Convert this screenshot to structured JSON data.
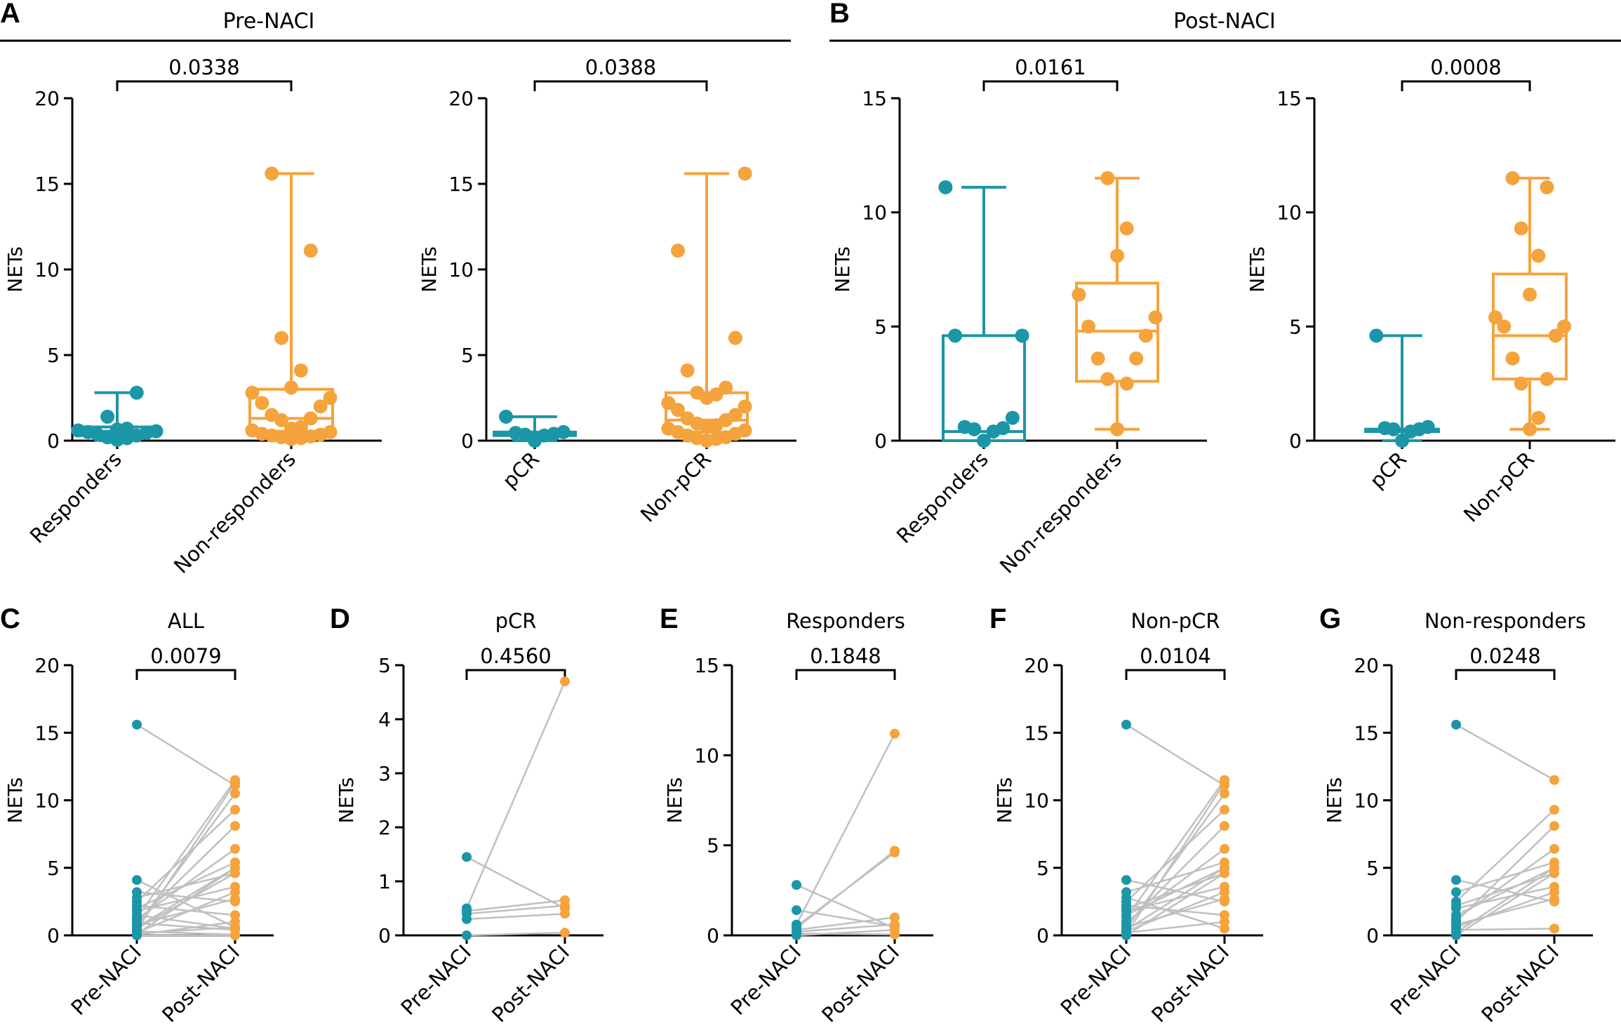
{
  "colors": {
    "teal": "#1b96a7",
    "orange": "#f5a33d",
    "line": "#c0c0c0"
  },
  "groups": [
    {
      "label": "A",
      "title": "Pre-NACI"
    },
    {
      "label": "B",
      "title": "Post-NACI"
    }
  ],
  "chart_data": [
    {
      "panel": "A",
      "type": "box",
      "ylabel": "NETs",
      "ylim": [
        0,
        20
      ],
      "yticks": [
        0,
        5,
        10,
        15,
        20
      ],
      "categories": [
        "Responders",
        "Non-responders"
      ],
      "p_value": "0.0338",
      "series": [
        {
          "values": [
            0.05,
            0.15,
            0.2,
            0.3,
            0.35,
            0.45,
            0.5,
            0.55,
            0.6,
            0.65,
            0.7,
            1.4,
            2.8
          ],
          "box": {
            "min": 0.05,
            "q1": 0.3,
            "median": 0.55,
            "q3": 0.8,
            "max": 2.8
          }
        },
        {
          "values": [
            0.1,
            0.15,
            0.2,
            0.25,
            0.3,
            0.35,
            0.4,
            0.5,
            0.6,
            0.7,
            0.8,
            1.2,
            1.3,
            1.5,
            2.0,
            2.2,
            2.5,
            2.8,
            3.1,
            4.1,
            6.0,
            11.1,
            15.6
          ],
          "box": {
            "min": 0.1,
            "q1": 0.55,
            "median": 1.3,
            "q3": 3.0,
            "max": 15.6
          }
        }
      ]
    },
    {
      "panel": "A",
      "type": "box",
      "ylabel": "NETs",
      "ylim": [
        0,
        20
      ],
      "yticks": [
        0,
        5,
        10,
        15,
        20
      ],
      "categories": [
        "pCR",
        "Non-pCR"
      ],
      "p_value": "0.0388",
      "series": [
        {
          "values": [
            0.0,
            0.3,
            0.35,
            0.4,
            0.45,
            0.5,
            1.4
          ],
          "box": {
            "min": 0.0,
            "q1": 0.3,
            "median": 0.4,
            "q3": 0.5,
            "max": 1.4
          }
        },
        {
          "values": [
            0.0,
            0.1,
            0.15,
            0.2,
            0.3,
            0.4,
            0.5,
            0.6,
            0.7,
            0.8,
            0.9,
            1.0,
            1.2,
            1.3,
            1.5,
            1.8,
            2.0,
            2.2,
            2.5,
            2.7,
            2.8,
            3.1,
            4.1,
            6.0,
            11.1,
            15.6
          ],
          "box": {
            "min": 0.0,
            "q1": 0.5,
            "median": 1.2,
            "q3": 2.8,
            "max": 15.6
          }
        }
      ]
    },
    {
      "panel": "B",
      "type": "box",
      "ylabel": "NETs",
      "ylim": [
        0,
        15
      ],
      "yticks": [
        0,
        5,
        10,
        15
      ],
      "categories": [
        "Responders",
        "Non-responders"
      ],
      "p_value": "0.0161",
      "series": [
        {
          "values": [
            0.0,
            0.4,
            0.5,
            0.55,
            0.6,
            1.0,
            4.6,
            4.6,
            11.1
          ],
          "box": {
            "min": 0.0,
            "q1": 0.0,
            "median": 0.4,
            "q3": 4.6,
            "max": 11.1
          }
        },
        {
          "values": [
            0.5,
            2.5,
            2.7,
            3.6,
            3.6,
            4.6,
            5.0,
            5.4,
            6.4,
            8.1,
            9.3,
            11.5
          ],
          "box": {
            "min": 0.5,
            "q1": 2.6,
            "median": 4.8,
            "q3": 6.9,
            "max": 11.5
          }
        }
      ]
    },
    {
      "panel": "B",
      "type": "box",
      "ylabel": "NETs",
      "ylim": [
        0,
        15
      ],
      "yticks": [
        0,
        5,
        10,
        15
      ],
      "categories": [
        "pCR",
        "Non-pCR"
      ],
      "p_value": "0.0008",
      "series": [
        {
          "values": [
            0.0,
            0.4,
            0.5,
            0.5,
            0.55,
            0.6,
            4.6
          ],
          "box": {
            "min": 0.0,
            "q1": 0.4,
            "median": 0.5,
            "q3": 0.5,
            "max": 4.6
          }
        },
        {
          "values": [
            0.5,
            1.0,
            2.5,
            2.7,
            3.6,
            4.6,
            5.0,
            5.0,
            5.4,
            6.4,
            8.1,
            9.3,
            11.1,
            11.5
          ],
          "box": {
            "min": 0.5,
            "q1": 2.7,
            "median": 4.6,
            "q3": 7.3,
            "max": 11.5
          }
        }
      ]
    },
    {
      "panel": "C",
      "type": "paired",
      "title": "ALL",
      "ylabel": "NETs",
      "ylim": [
        0,
        20
      ],
      "yticks": [
        0,
        5,
        10,
        15,
        20
      ],
      "categories": [
        "Pre-NACI",
        "Post-NACI"
      ],
      "p_value": "0.0079",
      "pairs": [
        [
          15.6,
          11.1
        ],
        [
          4.1,
          0.6
        ],
        [
          3.2,
          2.5
        ],
        [
          2.8,
          4.6
        ],
        [
          2.5,
          9.3
        ],
        [
          2.2,
          1.5
        ],
        [
          2.0,
          5.4
        ],
        [
          1.8,
          3.6
        ],
        [
          1.5,
          0.5
        ],
        [
          1.3,
          11.5
        ],
        [
          1.2,
          6.4
        ],
        [
          1.0,
          8.1
        ],
        [
          0.9,
          0.4
        ],
        [
          0.8,
          2.7
        ],
        [
          0.7,
          10.5
        ],
        [
          0.6,
          5.0
        ],
        [
          0.5,
          4.6
        ],
        [
          0.4,
          11.3
        ],
        [
          0.3,
          0.05
        ],
        [
          0.2,
          3.2
        ],
        [
          0.15,
          0.6
        ],
        [
          0.1,
          5.0
        ],
        [
          0.05,
          1.0
        ],
        [
          0.0,
          0.0
        ]
      ]
    },
    {
      "panel": "D",
      "type": "paired",
      "title": "pCR",
      "ylabel": "NETs",
      "ylim": [
        0,
        5
      ],
      "yticks": [
        0,
        1,
        2,
        3,
        4,
        5
      ],
      "categories": [
        "Pre-NACI",
        "Post-NACI"
      ],
      "p_value": "0.4560",
      "pairs": [
        [
          1.45,
          0.5
        ],
        [
          0.5,
          4.7
        ],
        [
          0.45,
          0.65
        ],
        [
          0.4,
          0.55
        ],
        [
          0.3,
          0.4
        ],
        [
          0.0,
          0.05
        ]
      ]
    },
    {
      "panel": "E",
      "type": "paired",
      "title": "Responders",
      "ylabel": "NETs",
      "ylim": [
        0,
        15
      ],
      "yticks": [
        0,
        5,
        10,
        15
      ],
      "categories": [
        "Pre-NACI",
        "Post-NACI"
      ],
      "p_value": "0.1848",
      "pairs": [
        [
          2.8,
          0.4
        ],
        [
          1.4,
          0.5
        ],
        [
          0.6,
          11.2
        ],
        [
          0.5,
          4.6
        ],
        [
          0.4,
          4.7
        ],
        [
          0.3,
          1.0
        ],
        [
          0.2,
          0.6
        ],
        [
          0.1,
          0.05
        ],
        [
          0.0,
          0.3
        ]
      ]
    },
    {
      "panel": "F",
      "type": "paired",
      "title": "Non-pCR",
      "ylabel": "NETs",
      "ylim": [
        0,
        20
      ],
      "yticks": [
        0,
        5,
        10,
        15,
        20
      ],
      "categories": [
        "Pre-NACI",
        "Post-NACI"
      ],
      "p_value": "0.0104",
      "pairs": [
        [
          15.6,
          11.1
        ],
        [
          4.1,
          2.5
        ],
        [
          3.2,
          5.4
        ],
        [
          2.8,
          0.5
        ],
        [
          2.5,
          9.3
        ],
        [
          2.2,
          1.5
        ],
        [
          2.0,
          4.6
        ],
        [
          1.8,
          3.6
        ],
        [
          1.5,
          5.0
        ],
        [
          1.3,
          11.5
        ],
        [
          1.0,
          6.4
        ],
        [
          0.8,
          8.1
        ],
        [
          0.6,
          2.7
        ],
        [
          0.5,
          10.5
        ],
        [
          0.4,
          5.0
        ],
        [
          0.3,
          3.2
        ],
        [
          0.2,
          1.0
        ],
        [
          0.1,
          11.3
        ],
        [
          0.0,
          4.6
        ]
      ]
    },
    {
      "panel": "G",
      "type": "paired",
      "title": "Non-responders",
      "ylabel": "NETs",
      "ylim": [
        0,
        20
      ],
      "yticks": [
        0,
        5,
        10,
        15,
        20
      ],
      "categories": [
        "Pre-NACI",
        "Post-NACI"
      ],
      "p_value": "0.0248",
      "pairs": [
        [
          15.6,
          11.5
        ],
        [
          4.1,
          2.5
        ],
        [
          3.2,
          5.4
        ],
        [
          2.5,
          9.3
        ],
        [
          2.2,
          4.6
        ],
        [
          2.0,
          3.6
        ],
        [
          1.5,
          5.0
        ],
        [
          1.2,
          6.4
        ],
        [
          1.0,
          8.1
        ],
        [
          0.8,
          2.7
        ],
        [
          0.6,
          3.2
        ],
        [
          0.4,
          0.5
        ],
        [
          0.2,
          5.0
        ],
        [
          0.0,
          4.6
        ]
      ]
    }
  ]
}
